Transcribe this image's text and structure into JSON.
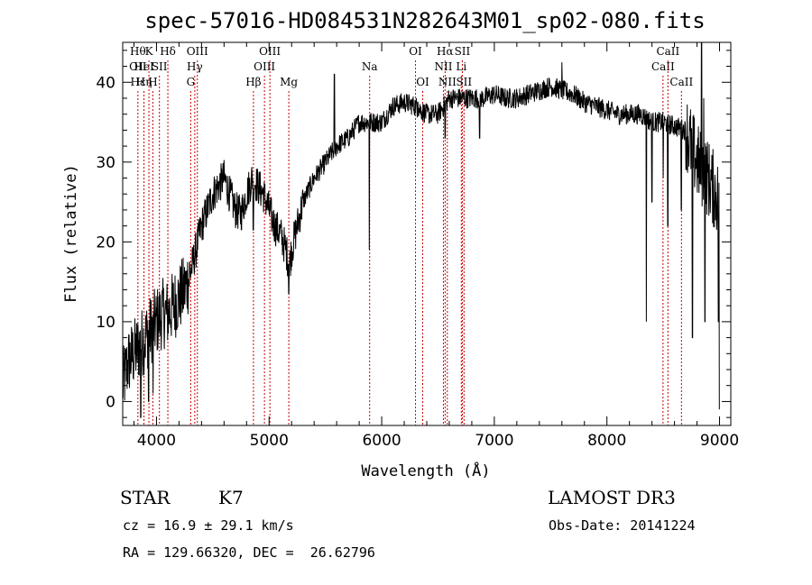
{
  "chart_data": {
    "type": "line",
    "title": "spec-57016-HD084531N282643M01_sp02-080.fits",
    "xlabel": "Wavelength (Å)",
    "ylabel": "Flux (relative)",
    "xlim": [
      3700,
      9100
    ],
    "ylim": [
      -3,
      45
    ],
    "x_ticks": [
      4000,
      5000,
      6000,
      7000,
      8000,
      9000
    ],
    "y_ticks": [
      0,
      10,
      20,
      30,
      40
    ],
    "grid": false,
    "legend": "none",
    "line_color": "#000000",
    "marker_color": "#cc0000",
    "anchors": [
      [
        3700,
        2
      ],
      [
        3750,
        5
      ],
      [
        3800,
        6
      ],
      [
        3850,
        7
      ],
      [
        3900,
        8
      ],
      [
        3950,
        9
      ],
      [
        4000,
        10
      ],
      [
        4050,
        11
      ],
      [
        4100,
        11
      ],
      [
        4150,
        12
      ],
      [
        4200,
        13
      ],
      [
        4250,
        14
      ],
      [
        4300,
        16
      ],
      [
        4350,
        19
      ],
      [
        4400,
        22
      ],
      [
        4450,
        24
      ],
      [
        4500,
        26
      ],
      [
        4550,
        27
      ],
      [
        4600,
        28
      ],
      [
        4650,
        26
      ],
      [
        4700,
        24
      ],
      [
        4750,
        23.5
      ],
      [
        4800,
        26
      ],
      [
        4850,
        28
      ],
      [
        4900,
        27
      ],
      [
        4950,
        26
      ],
      [
        5000,
        24
      ],
      [
        5050,
        22
      ],
      [
        5100,
        21
      ],
      [
        5150,
        19
      ],
      [
        5180,
        17
      ],
      [
        5200,
        19
      ],
      [
        5250,
        22
      ],
      [
        5300,
        25
      ],
      [
        5400,
        28
      ],
      [
        5500,
        30
      ],
      [
        5600,
        32
      ],
      [
        5700,
        33
      ],
      [
        5800,
        35
      ],
      [
        5900,
        35
      ],
      [
        6000,
        35
      ],
      [
        6100,
        37
      ],
      [
        6200,
        37.5
      ],
      [
        6300,
        37
      ],
      [
        6400,
        36
      ],
      [
        6500,
        36
      ],
      [
        6600,
        38
      ],
      [
        6700,
        38
      ],
      [
        6800,
        38
      ],
      [
        6900,
        38
      ],
      [
        7000,
        38.5
      ],
      [
        7100,
        38
      ],
      [
        7200,
        38
      ],
      [
        7300,
        38.5
      ],
      [
        7400,
        39
      ],
      [
        7500,
        39.5
      ],
      [
        7600,
        39
      ],
      [
        7700,
        38.5
      ],
      [
        7800,
        37.5
      ],
      [
        7900,
        37
      ],
      [
        8000,
        36.5
      ],
      [
        8100,
        36
      ],
      [
        8200,
        36
      ],
      [
        8300,
        36
      ],
      [
        8400,
        35
      ],
      [
        8500,
        35
      ],
      [
        8600,
        34.5
      ],
      [
        8700,
        34
      ],
      [
        8800,
        30
      ],
      [
        8900,
        28
      ],
      [
        9000,
        25
      ]
    ],
    "dips": [
      [
        3860,
        -2
      ],
      [
        3930,
        0
      ],
      [
        3970,
        1
      ],
      [
        4860,
        21.5
      ],
      [
        5175,
        13.5
      ],
      [
        5890,
        19
      ],
      [
        6563,
        33
      ],
      [
        6870,
        33
      ],
      [
        8350,
        10
      ],
      [
        8400,
        25
      ],
      [
        8500,
        28
      ],
      [
        8540,
        22
      ],
      [
        8660,
        24
      ],
      [
        8760,
        8
      ],
      [
        8870,
        10
      ],
      [
        8990,
        10
      ],
      [
        9000,
        -1
      ]
    ],
    "spikes": [
      [
        5580,
        41
      ],
      [
        7600,
        42.5
      ],
      [
        8840,
        45
      ],
      [
        8860,
        38
      ],
      [
        6320,
        37.5
      ]
    ],
    "line_markers": [
      {
        "x": 3835,
        "labels": [
          {
            "text": "Hθ",
            "row": 0
          },
          {
            "text": "OII",
            "row": 1
          },
          {
            "text": "Hε",
            "row": 2
          }
        ]
      },
      {
        "x": 3889,
        "labels": [
          {
            "text": "HeI",
            "row": 1
          },
          {
            "text": "Hη",
            "row": 2
          }
        ]
      },
      {
        "x": 3933,
        "labels": [
          {
            "text": "K",
            "row": 0
          }
        ]
      },
      {
        "x": 3968,
        "labels": [
          {
            "text": "H",
            "row": 2
          }
        ]
      },
      {
        "x": 4026,
        "labels": [
          {
            "text": "SII",
            "row": 1
          }
        ]
      },
      {
        "x": 4101,
        "labels": [
          {
            "text": "Hδ",
            "row": 0
          }
        ]
      },
      {
        "x": 4304,
        "labels": [
          {
            "text": "G",
            "row": 2
          }
        ]
      },
      {
        "x": 4340,
        "labels": [
          {
            "text": "Hγ",
            "row": 1
          }
        ]
      },
      {
        "x": 4363,
        "labels": [
          {
            "text": "OIII",
            "row": 0
          }
        ]
      },
      {
        "x": 4861,
        "labels": [
          {
            "text": "Hβ",
            "row": 2
          }
        ]
      },
      {
        "x": 4959,
        "labels": [
          {
            "text": "OIII",
            "row": 1
          }
        ]
      },
      {
        "x": 5007,
        "labels": [
          {
            "text": "OIII",
            "row": 0
          }
        ]
      },
      {
        "x": 5175,
        "labels": [
          {
            "text": "Mg",
            "row": 2
          }
        ]
      },
      {
        "x": 5893,
        "labels": [
          {
            "text": "Na",
            "row": 1
          }
        ]
      },
      {
        "x": 6300,
        "labels": [
          {
            "text": "OI",
            "row": 0
          }
        ]
      },
      {
        "x": 6364,
        "labels": [
          {
            "text": "OI",
            "row": 2
          }
        ]
      },
      {
        "x": 6548,
        "labels": [
          {
            "text": "NII",
            "row": 1
          }
        ]
      },
      {
        "x": 6563,
        "labels": [
          {
            "text": "Hα",
            "row": 0
          }
        ]
      },
      {
        "x": 6583,
        "labels": [
          {
            "text": "NII",
            "row": 2
          }
        ]
      },
      {
        "x": 6707,
        "labels": [
          {
            "text": "Li",
            "row": 1
          }
        ]
      },
      {
        "x": 6716,
        "labels": [
          {
            "text": "SII",
            "row": 0
          }
        ]
      },
      {
        "x": 6731,
        "labels": [
          {
            "text": "SII",
            "row": 2
          }
        ]
      },
      {
        "x": 8498,
        "labels": [
          {
            "text": "CaII",
            "row": 1
          }
        ]
      },
      {
        "x": 8542,
        "labels": [
          {
            "text": "CaII",
            "row": 0
          }
        ]
      },
      {
        "x": 8662,
        "labels": [
          {
            "text": "CaII",
            "row": 2
          }
        ]
      }
    ]
  },
  "footer": {
    "class_label": "STAR",
    "subclass": "K7",
    "survey": "LAMOST DR3",
    "cz": "cz = 16.9 ± 29.1 km/s",
    "obs_date": "Obs-Date: 20141224",
    "coords": "RA = 129.66320, DEC =  26.62796"
  }
}
